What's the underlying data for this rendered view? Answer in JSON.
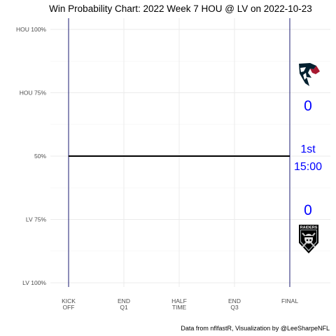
{
  "chart_data": {
    "type": "line",
    "title": "Win Probability Chart: 2022 Week 7 HOU @ LV on 2022-10-23",
    "caption": "Data from nflfastR, Visualization by @LeeSharpeNFL",
    "y_tick_labels": [
      "HOU 100%",
      "HOU 75%",
      "50%",
      "LV 75%",
      "LV 100%"
    ],
    "y_tick_values": [
      1.0,
      0.75,
      0.5,
      0.25,
      0.0
    ],
    "x_tick_labels": [
      [
        "KICK",
        "OFF"
      ],
      [
        "END",
        "Q1"
      ],
      [
        "HALF",
        "TIME"
      ],
      [
        "END",
        "Q3"
      ],
      [
        "FINAL"
      ]
    ],
    "x_tick_values": [
      0,
      15,
      30,
      45,
      60
    ],
    "xlim": [
      0,
      60
    ],
    "ylim": [
      0,
      1
    ],
    "series": [
      {
        "x": [
          0,
          60
        ],
        "y": [
          0.5,
          0.5
        ]
      }
    ],
    "line_color": "#000000",
    "vline_color": "#191970",
    "accent_color": "#0000ff",
    "grid": true
  },
  "scoreboard": {
    "home_score": "0",
    "away_score": "0",
    "period": "1st",
    "clock": "15:00"
  },
  "logos": {
    "top": "houston-texans-logo",
    "bottom": "las-vegas-raiders-logo",
    "raiders_text": "RAIDERS"
  }
}
